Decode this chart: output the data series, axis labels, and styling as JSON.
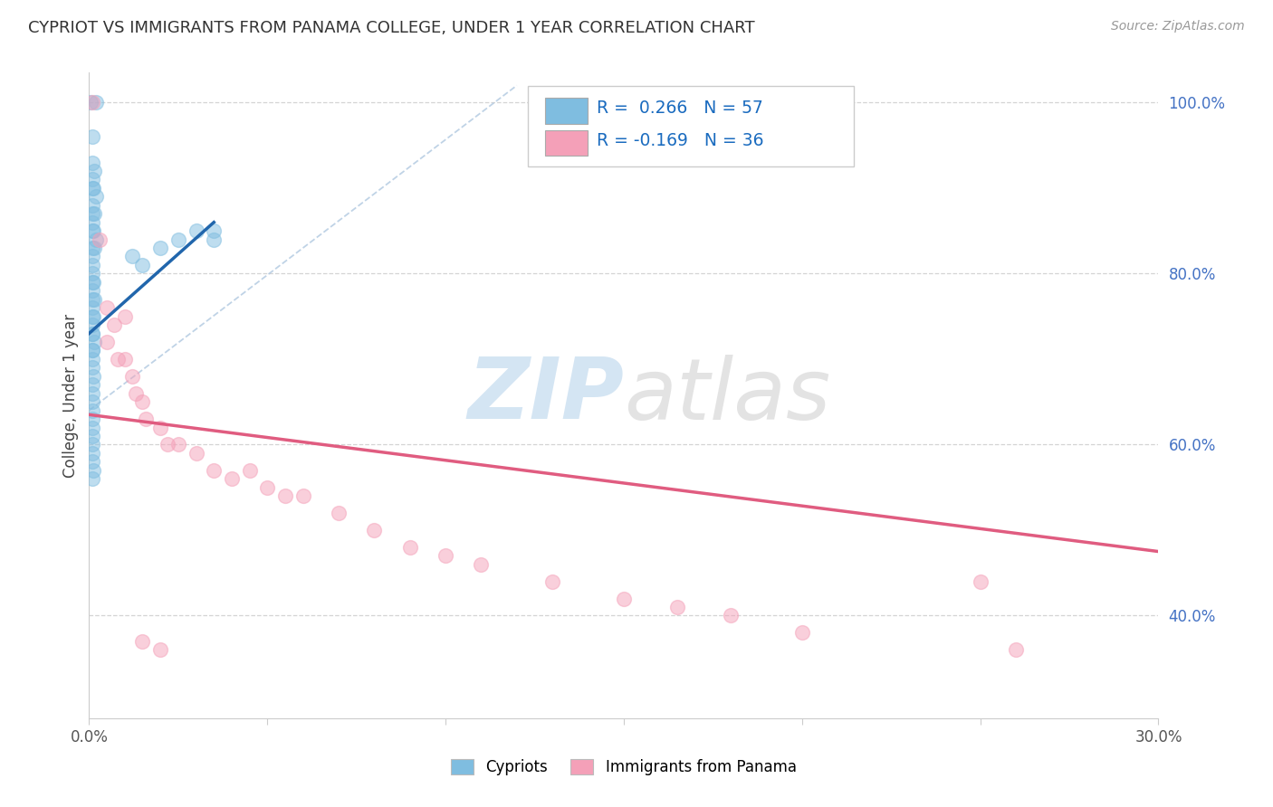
{
  "title": "CYPRIOT VS IMMIGRANTS FROM PANAMA COLLEGE, UNDER 1 YEAR CORRELATION CHART",
  "source": "Source: ZipAtlas.com",
  "ylabel": "College, Under 1 year",
  "x_min": 0.0,
  "x_max": 0.3,
  "y_min": 0.28,
  "y_max": 1.035,
  "blue_color": "#7fbde0",
  "pink_color": "#f4a0b8",
  "blue_line_color": "#2166ac",
  "pink_line_color": "#e05c80",
  "legend_text1": "R =  0.266   N = 57",
  "legend_text2": "R = -0.169   N = 36",
  "legend_color": "#1a6bbf",
  "watermark_zip_color": "#b8d4ec",
  "watermark_atlas_color": "#c8c8c8",
  "cypriots_x": [
    0.0005,
    0.002,
    0.001,
    0.001,
    0.0015,
    0.001,
    0.0008,
    0.0012,
    0.0018,
    0.001,
    0.0015,
    0.001,
    0.0008,
    0.001,
    0.0012,
    0.002,
    0.001,
    0.0015,
    0.0008,
    0.001,
    0.001,
    0.0012,
    0.0008,
    0.001,
    0.0015,
    0.001,
    0.0008,
    0.001,
    0.0012,
    0.001,
    0.0008,
    0.001,
    0.0015,
    0.001,
    0.0008,
    0.001,
    0.001,
    0.0012,
    0.001,
    0.001,
    0.001,
    0.001,
    0.001,
    0.0008,
    0.001,
    0.001,
    0.0008,
    0.001,
    0.0012,
    0.001,
    0.012,
    0.015,
    0.02,
    0.025,
    0.03,
    0.035,
    0.035
  ],
  "cypriots_y": [
    1.0,
    1.0,
    0.96,
    0.93,
    0.92,
    0.91,
    0.9,
    0.9,
    0.89,
    0.88,
    0.87,
    0.87,
    0.86,
    0.85,
    0.85,
    0.84,
    0.83,
    0.83,
    0.82,
    0.81,
    0.8,
    0.79,
    0.79,
    0.78,
    0.77,
    0.77,
    0.76,
    0.75,
    0.75,
    0.74,
    0.73,
    0.73,
    0.72,
    0.71,
    0.71,
    0.7,
    0.69,
    0.68,
    0.67,
    0.66,
    0.65,
    0.64,
    0.63,
    0.62,
    0.61,
    0.6,
    0.59,
    0.58,
    0.57,
    0.56,
    0.82,
    0.81,
    0.83,
    0.84,
    0.85,
    0.85,
    0.84
  ],
  "panama_x": [
    0.001,
    0.003,
    0.005,
    0.005,
    0.007,
    0.008,
    0.01,
    0.01,
    0.012,
    0.013,
    0.015,
    0.016,
    0.02,
    0.022,
    0.025,
    0.03,
    0.035,
    0.04,
    0.045,
    0.05,
    0.055,
    0.06,
    0.07,
    0.08,
    0.09,
    0.1,
    0.11,
    0.13,
    0.15,
    0.165,
    0.18,
    0.2,
    0.25,
    0.26,
    0.015,
    0.02
  ],
  "panama_y": [
    1.0,
    0.84,
    0.76,
    0.72,
    0.74,
    0.7,
    0.75,
    0.7,
    0.68,
    0.66,
    0.65,
    0.63,
    0.62,
    0.6,
    0.6,
    0.59,
    0.57,
    0.56,
    0.57,
    0.55,
    0.54,
    0.54,
    0.52,
    0.5,
    0.48,
    0.47,
    0.46,
    0.44,
    0.42,
    0.41,
    0.4,
    0.38,
    0.44,
    0.36,
    0.37,
    0.36
  ]
}
